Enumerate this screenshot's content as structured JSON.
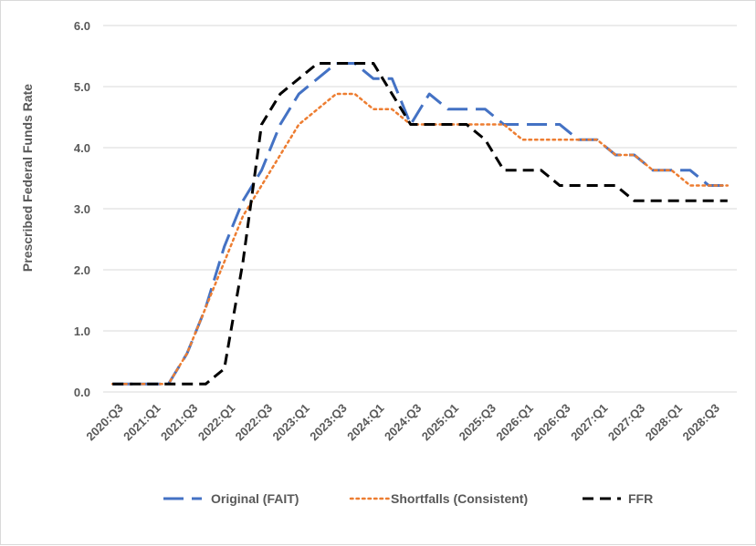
{
  "chart_data": {
    "type": "line",
    "title": "",
    "xlabel": "",
    "ylabel": "Prescribed Federal Funds Rate",
    "ylim": [
      0,
      6
    ],
    "yticks": [
      "0.0",
      "1.0",
      "2.0",
      "3.0",
      "4.0",
      "5.0",
      "6.0"
    ],
    "categories": [
      "2020:Q3",
      "2020:Q4",
      "2021:Q1",
      "2021:Q2",
      "2021:Q3",
      "2021:Q4",
      "2022:Q1",
      "2022:Q2",
      "2022:Q3",
      "2022:Q4",
      "2023:Q1",
      "2023:Q2",
      "2023:Q3",
      "2023:Q4",
      "2024:Q1",
      "2024:Q2",
      "2024:Q3",
      "2024:Q4",
      "2025:Q1",
      "2025:Q2",
      "2025:Q3",
      "2025:Q4",
      "2026:Q1",
      "2026:Q2",
      "2026:Q3",
      "2026:Q4",
      "2027:Q1",
      "2027:Q2",
      "2027:Q3",
      "2027:Q4",
      "2028:Q1",
      "2028:Q2",
      "2028:Q3",
      "2028:Q4"
    ],
    "xtick_labels": [
      "2020:Q3",
      "2021:Q1",
      "2021:Q3",
      "2022:Q1",
      "2022:Q3",
      "2023:Q1",
      "2023:Q3",
      "2024:Q1",
      "2024:Q3",
      "2025:Q1",
      "2025:Q3",
      "2026:Q1",
      "2026:Q3",
      "2027:Q1",
      "2027:Q3",
      "2028:Q1",
      "2028:Q3"
    ],
    "series": [
      {
        "name": "Original (FAIT)",
        "color": "#4472c4",
        "dash": "long-dash",
        "values": [
          0.13,
          0.13,
          0.13,
          0.13,
          0.63,
          1.38,
          2.38,
          3.13,
          3.63,
          4.38,
          4.88,
          5.13,
          5.38,
          5.38,
          5.13,
          5.13,
          4.38,
          4.88,
          4.63,
          4.63,
          4.63,
          4.38,
          4.38,
          4.38,
          4.38,
          4.13,
          4.13,
          3.88,
          3.88,
          3.63,
          3.63,
          3.63,
          3.38,
          3.38
        ]
      },
      {
        "name": "Shortfalls (Consistent)",
        "color": "#ed7d31",
        "dash": "dotted",
        "values": [
          0.13,
          0.13,
          0.13,
          0.13,
          0.63,
          1.38,
          2.13,
          2.88,
          3.38,
          3.88,
          4.38,
          4.63,
          4.88,
          4.88,
          4.63,
          4.63,
          4.38,
          4.38,
          4.38,
          4.38,
          4.38,
          4.38,
          4.13,
          4.13,
          4.13,
          4.13,
          4.13,
          3.88,
          3.88,
          3.63,
          3.63,
          3.38,
          3.38,
          3.38
        ]
      },
      {
        "name": "FFR",
        "color": "#000000",
        "dash": "dash",
        "values": [
          0.13,
          0.13,
          0.13,
          0.13,
          0.13,
          0.13,
          0.38,
          2.13,
          4.38,
          4.88,
          5.13,
          5.38,
          5.38,
          5.38,
          5.38,
          4.88,
          4.38,
          4.38,
          4.38,
          4.38,
          4.13,
          3.63,
          3.63,
          3.63,
          3.38,
          3.38,
          3.38,
          3.38,
          3.13,
          3.13,
          3.13,
          3.13,
          3.13,
          3.13
        ]
      }
    ],
    "grid": "horizontal",
    "legend_position": "bottom"
  }
}
